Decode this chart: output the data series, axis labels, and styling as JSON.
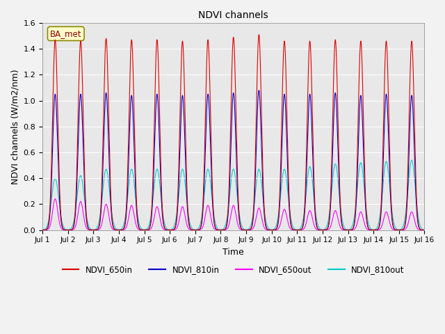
{
  "title": "NDVI channels",
  "xlabel": "Time",
  "ylabel": "NDVI channels (W/m2/nm)",
  "xlim": [
    0,
    15
  ],
  "ylim": [
    0.0,
    1.6
  ],
  "yticks": [
    0.0,
    0.2,
    0.4,
    0.6,
    0.8,
    1.0,
    1.2,
    1.4,
    1.6
  ],
  "xtick_labels": [
    "Jul 1",
    "Jul 2",
    "Jul 3",
    "Jul 4",
    "Jul 5",
    "Jul 6",
    "Jul 7",
    "Jul 8",
    "Jul 9",
    "Jul 10",
    "Jul 11",
    "Jul 12",
    "Jul 13",
    "Jul 14",
    "Jul 15",
    "Jul 16"
  ],
  "xtick_positions": [
    0,
    1,
    2,
    3,
    4,
    5,
    6,
    7,
    8,
    9,
    10,
    11,
    12,
    13,
    14,
    15
  ],
  "line_650in_color": "#dd0000",
  "line_810in_color": "#0000cc",
  "line_650out_color": "#ff00ff",
  "line_810out_color": "#00cccc",
  "background_color": "#e8e8e8",
  "fig_background_color": "#f2f2f2",
  "legend_label": "BA_met",
  "peak_650in": [
    1.47,
    1.46,
    1.48,
    1.47,
    1.47,
    1.46,
    1.47,
    1.49,
    1.51,
    1.46,
    1.46,
    1.47,
    1.46,
    1.46,
    1.46
  ],
  "peak_810in": [
    1.05,
    1.05,
    1.06,
    1.04,
    1.05,
    1.04,
    1.05,
    1.06,
    1.08,
    1.05,
    1.05,
    1.06,
    1.04,
    1.05,
    1.04
  ],
  "peak_650out": [
    0.24,
    0.22,
    0.2,
    0.19,
    0.18,
    0.18,
    0.19,
    0.19,
    0.17,
    0.16,
    0.15,
    0.15,
    0.14,
    0.14,
    0.14
  ],
  "peak_810out": [
    0.4,
    0.42,
    0.47,
    0.47,
    0.47,
    0.47,
    0.47,
    0.47,
    0.47,
    0.47,
    0.49,
    0.51,
    0.52,
    0.53,
    0.54
  ],
  "num_days": 15,
  "points_per_day": 300,
  "sigma_narrow": 0.1,
  "sigma_wide": 0.14,
  "legend_entries": [
    "NDVI_650in",
    "NDVI_810in",
    "NDVI_650out",
    "NDVI_810out"
  ],
  "legend_colors": [
    "#dd0000",
    "#0000cc",
    "#ff00ff",
    "#00cccc"
  ]
}
